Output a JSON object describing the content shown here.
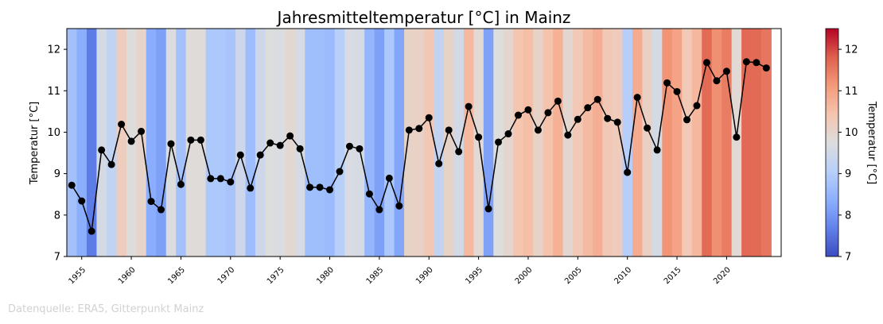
{
  "chart_data": {
    "type": "line",
    "title": "Jahresmitteltemperatur [°C] in Mainz",
    "ylabel": "Temperatur [°C]",
    "colorbar_label": "Temperatur [°C]",
    "xlim": [
      1954,
      2025
    ],
    "ylim": [
      7,
      12.5
    ],
    "xticks": [
      1955,
      1960,
      1965,
      1970,
      1975,
      1980,
      1985,
      1990,
      1995,
      2000,
      2005,
      2010,
      2015,
      2020
    ],
    "yticks": [
      7,
      8,
      9,
      10,
      11,
      12
    ],
    "colorbar_ticks": [
      7,
      8,
      9,
      10,
      11,
      12
    ],
    "colormap": "coolwarm",
    "color_range": [
      7,
      12.5
    ],
    "line_color": "#000000",
    "marker_color": "#000000",
    "background": "warming stripes colored by yearly mean temperature",
    "grid": false,
    "legend": "none",
    "series": [
      {
        "x": [
          1954,
          1955,
          1956,
          1957,
          1958,
          1959,
          1960,
          1961,
          1962,
          1963,
          1964,
          1965,
          1966,
          1967,
          1968,
          1969,
          1970,
          1971,
          1972,
          1973,
          1974,
          1975,
          1976,
          1977,
          1978,
          1979,
          1980,
          1981,
          1982,
          1983,
          1984,
          1985,
          1986,
          1987,
          1988,
          1989,
          1990,
          1991,
          1992,
          1993,
          1994,
          1995,
          1996,
          1997,
          1998,
          1999,
          2000,
          2001,
          2002,
          2003,
          2004,
          2005,
          2006,
          2007,
          2008,
          2009,
          2010,
          2011,
          2012,
          2013,
          2014,
          2015,
          2016,
          2017,
          2018,
          2019,
          2020,
          2021,
          2022,
          2023,
          2024
        ],
        "values": [
          8.72,
          8.34,
          7.61,
          9.57,
          9.22,
          10.19,
          9.78,
          10.02,
          8.33,
          8.13,
          9.72,
          8.74,
          9.81,
          9.81,
          8.88,
          8.88,
          8.8,
          9.45,
          8.65,
          9.45,
          9.74,
          9.68,
          9.91,
          9.6,
          8.67,
          8.67,
          8.61,
          9.05,
          9.66,
          9.6,
          8.51,
          8.13,
          8.89,
          8.22,
          10.05,
          10.09,
          10.35,
          9.24,
          10.05,
          9.53,
          10.62,
          9.88,
          8.15,
          9.76,
          9.96,
          10.41,
          10.54,
          10.05,
          10.47,
          10.75,
          9.93,
          10.31,
          10.59,
          10.79,
          10.33,
          10.24,
          9.03,
          10.84,
          10.1,
          9.57,
          11.19,
          10.98,
          10.3,
          10.64,
          11.68,
          11.24,
          11.47,
          9.88,
          11.7,
          11.68,
          11.55
        ]
      }
    ]
  },
  "source_text": "Datenquelle: ERA5, Gitterpunkt Mainz"
}
